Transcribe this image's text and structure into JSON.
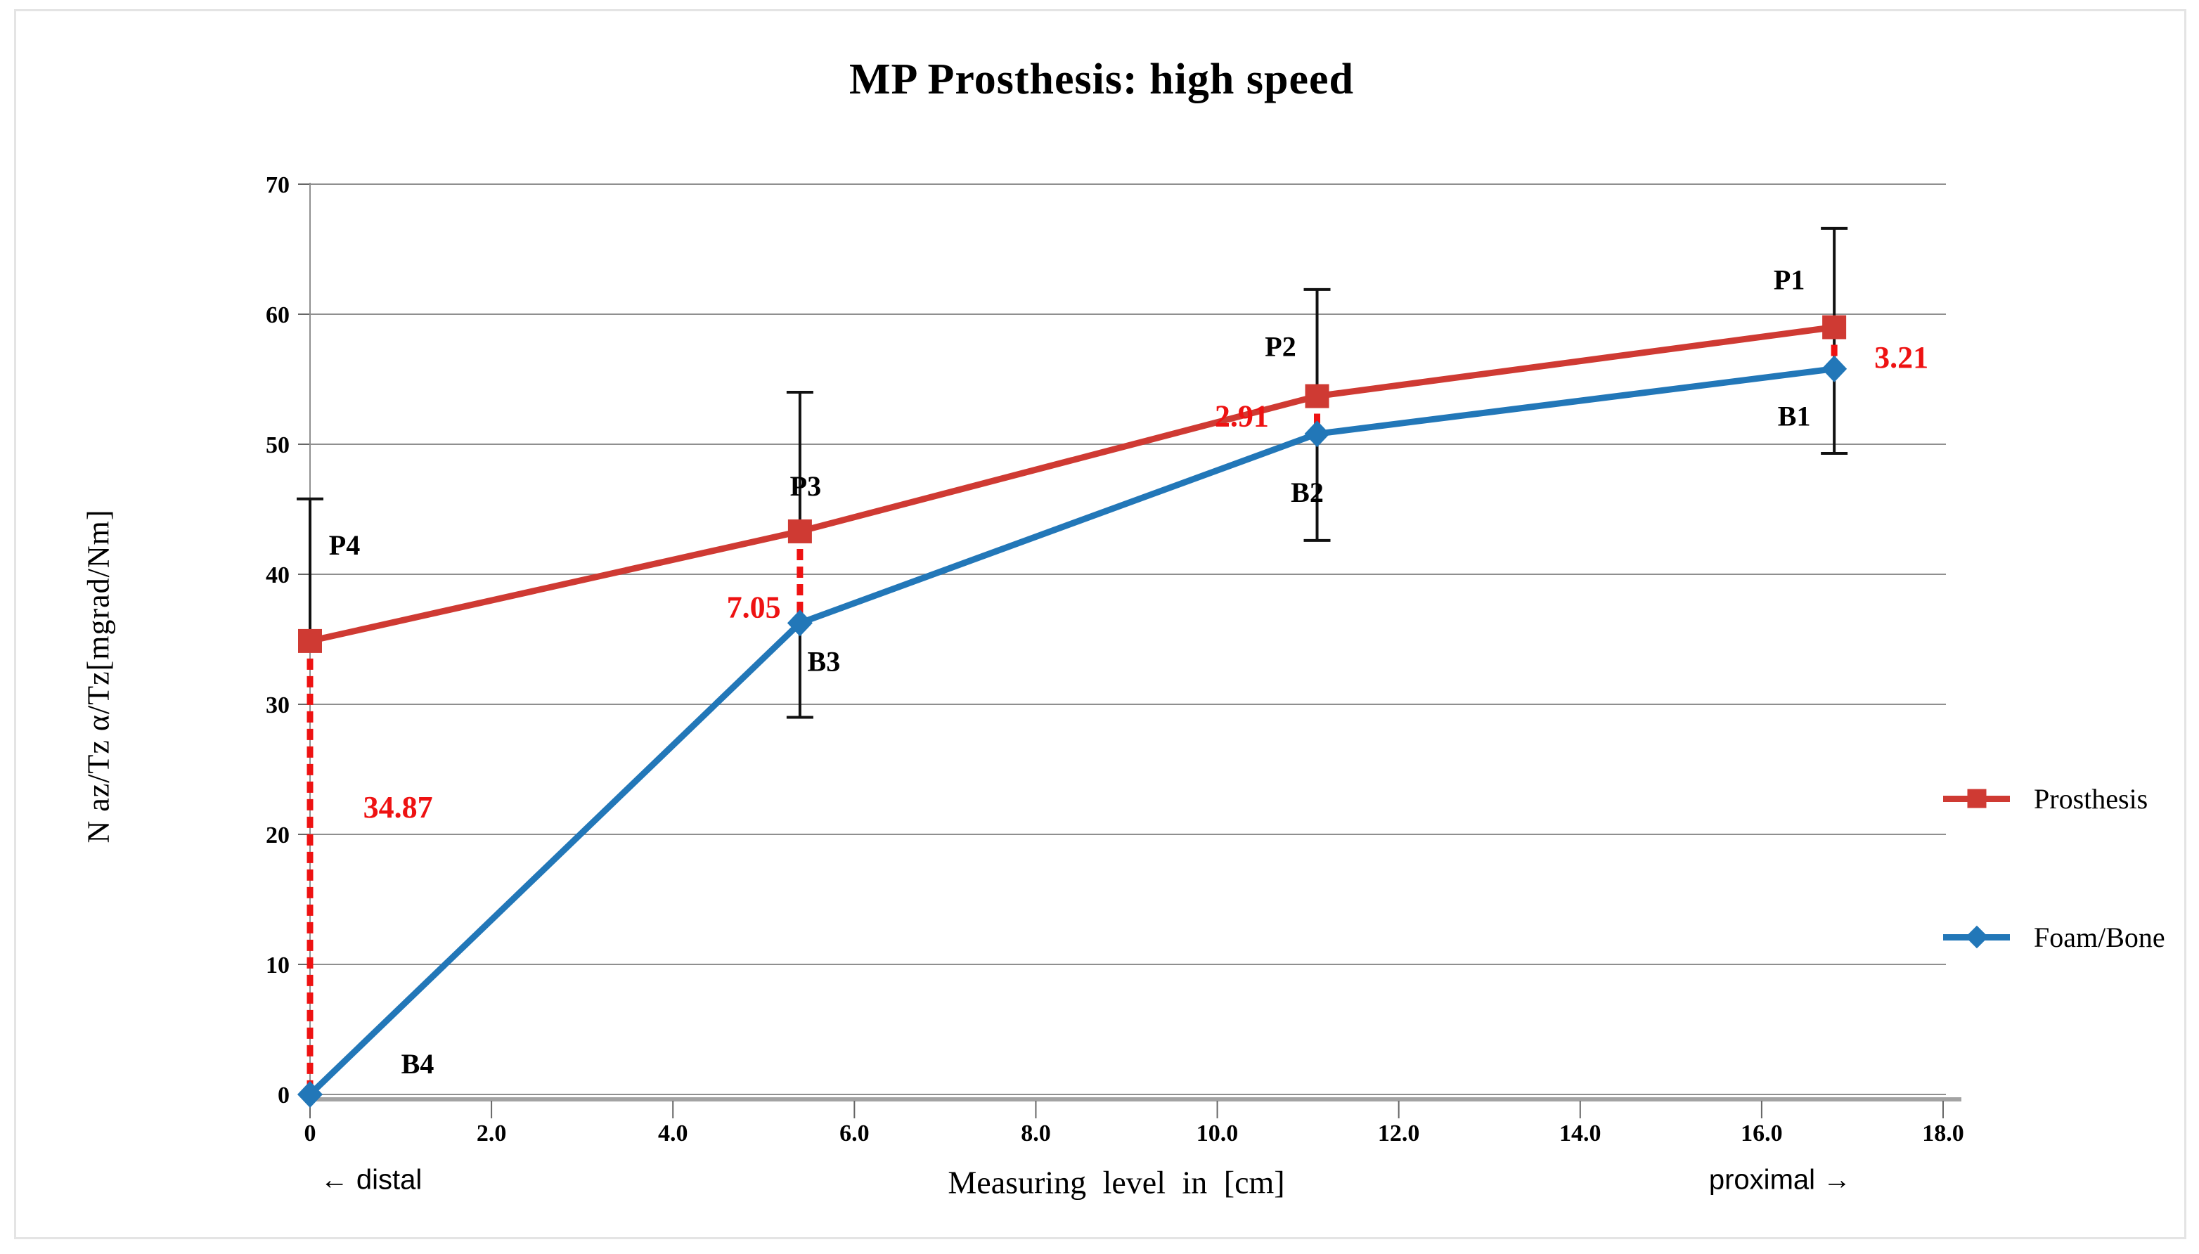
{
  "chart_data": {
    "type": "line",
    "title": "MP Prosthesis: high speed",
    "xlabel": "Measuring level in [cm]",
    "ylabel": "N az/Tz α/Tz[mgrad/Nm]",
    "xlim": [
      0,
      18
    ],
    "ylim": [
      0,
      70
    ],
    "grid": "horizontal",
    "x_tick_labels": [
      "0",
      "2.0",
      "4.0",
      "6.0",
      "8.0",
      "10.0",
      "12.0",
      "14.0",
      "16.0",
      "18.0"
    ],
    "x_tick_values": [
      0,
      2,
      4,
      6,
      8,
      10,
      12,
      14,
      16,
      18
    ],
    "y_tick_labels": [
      "0",
      "10",
      "20",
      "30",
      "40",
      "50",
      "60",
      "70"
    ],
    "y_tick_values": [
      0,
      10,
      20,
      30,
      40,
      50,
      60,
      70
    ],
    "legend_position": "right",
    "series": [
      {
        "name": "Prosthesis",
        "color": "#cf3a33",
        "marker": "square",
        "points": [
          {
            "x": 0.0,
            "y": 34.87,
            "label": "P4",
            "label_dx": 49,
            "label_dy": -137
          },
          {
            "x": 5.4,
            "y": 43.3,
            "label": "P3",
            "label_dx": 8,
            "label_dy": -65
          },
          {
            "x": 11.1,
            "y": 53.7,
            "label": "P2",
            "label_dx": -52,
            "label_dy": -71
          },
          {
            "x": 16.8,
            "y": 59.0,
            "label": "P1",
            "label_dx": -64,
            "label_dy": -68
          }
        ]
      },
      {
        "name": "Foam/Bone",
        "color": "#2277b8",
        "marker": "diamond",
        "points": [
          {
            "x": 0.0,
            "y": 0.0,
            "label": "B4",
            "label_dx": 153,
            "label_dy": -44
          },
          {
            "x": 5.4,
            "y": 36.25,
            "label": "B3",
            "label_dx": 34,
            "label_dy": 54
          },
          {
            "x": 11.1,
            "y": 50.8,
            "label": "B2",
            "label_dx": -14,
            "label_dy": 83
          },
          {
            "x": 16.8,
            "y": 55.8,
            "label": "B1",
            "label_dx": -57,
            "label_dy": 67
          }
        ]
      }
    ],
    "error_bars": [
      {
        "x": 0.0,
        "y_top": 45.8,
        "y_bottom": 34.87,
        "cap_top": true,
        "cap_bottom": false
      },
      {
        "x": 5.4,
        "y_top": 54.0,
        "y_bottom": 43.3,
        "cap_top": true,
        "cap_bottom": false
      },
      {
        "x": 5.4,
        "y_top": 36.25,
        "y_bottom": 29.0,
        "cap_top": false,
        "cap_bottom": true
      },
      {
        "x": 11.1,
        "y_top": 61.9,
        "y_bottom": 53.7,
        "cap_top": true,
        "cap_bottom": false
      },
      {
        "x": 11.1,
        "y_top": 50.8,
        "y_bottom": 42.6,
        "cap_top": false,
        "cap_bottom": true
      },
      {
        "x": 16.8,
        "y_top": 66.6,
        "y_bottom": 49.3,
        "cap_top": true,
        "cap_bottom": true
      }
    ],
    "differences": [
      {
        "x": 0.0,
        "y_from": 34.87,
        "y_to": 0.0,
        "value": "34.87",
        "label_x": 0.97,
        "label_y": 22.1
      },
      {
        "x": 5.4,
        "y_from": 43.3,
        "y_to": 36.25,
        "value": "7.05",
        "label_x": 4.89,
        "label_y": 37.5
      },
      {
        "x": 11.1,
        "y_from": 53.7,
        "y_to": 50.8,
        "value": "2.91",
        "label_x": 10.27,
        "label_y": 52.2
      },
      {
        "x": 16.8,
        "y_from": 59.0,
        "y_to": 55.8,
        "value": "3.21",
        "label_x": 17.54,
        "label_y": 56.7
      }
    ],
    "annotations": {
      "distal": "← distal",
      "proximal": "proximal →"
    },
    "colors": {
      "prosthesis_red": "#cf3a33",
      "foam_bone_blue": "#2277b8",
      "difference_red": "#ee1212",
      "gridline_gray": "#8f8f8f",
      "axis_gray": "#a3a3a3",
      "error_bar_black": "#111111"
    }
  },
  "legend": {
    "items": [
      {
        "label": "Prosthesis"
      },
      {
        "label": "Foam/Bone"
      }
    ]
  }
}
